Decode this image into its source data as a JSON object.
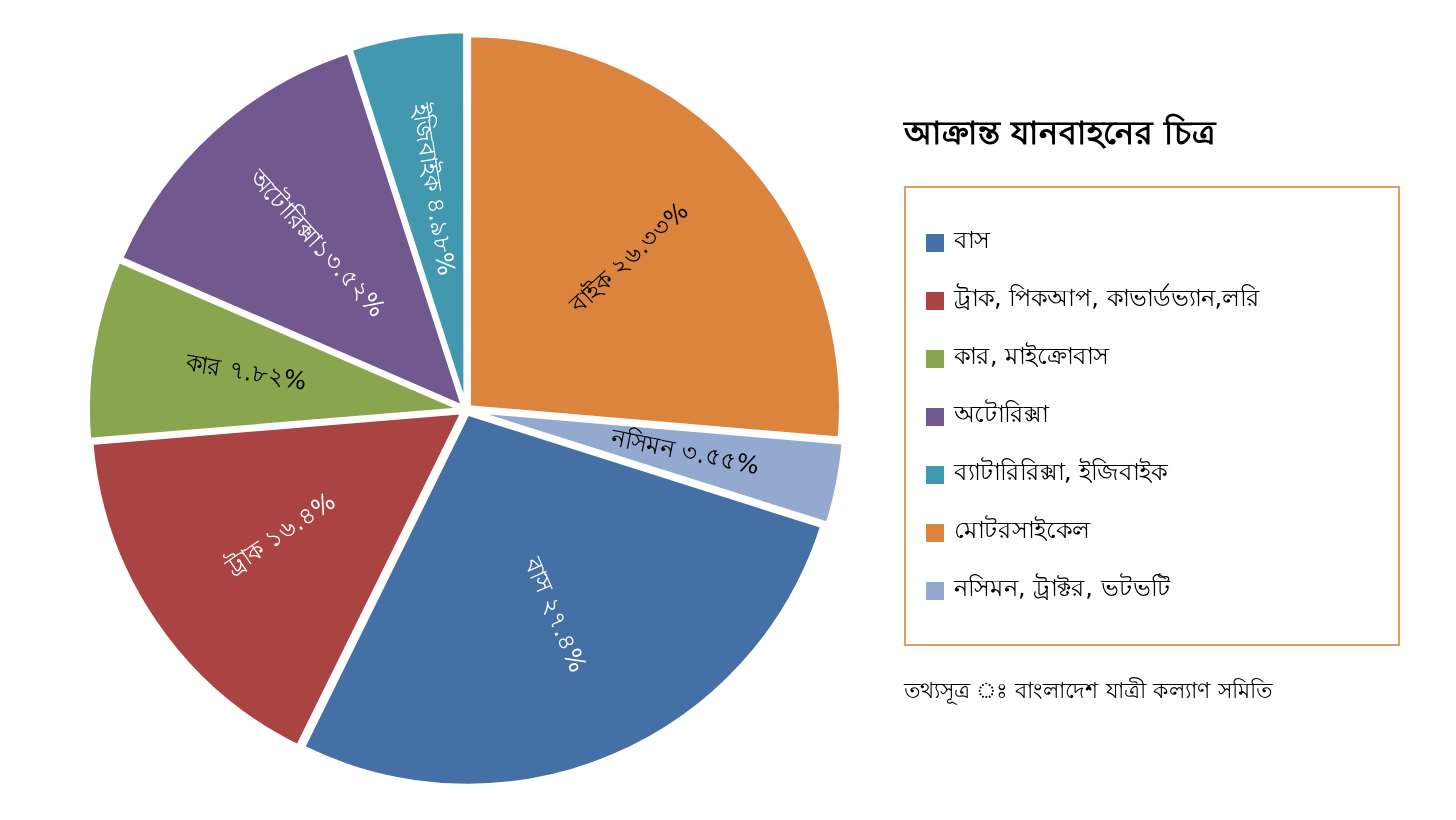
{
  "chart_data": {
    "type": "pie",
    "title": "আক্রান্ত যানবাহনের চিত্র",
    "categories": [
      "বাস",
      "ট্রাক, পিকআপ, কাভার্ডভ্যান,লরি",
      "কার, মাইক্রোবাস",
      "অটোরিক্সা",
      "ব্যাটারিরিক্সা, ইজিবাইক",
      "মোটরসাইকেল",
      "নসিমন, ট্রাক্টর, ভটভটি"
    ],
    "values": [
      27.4,
      16.4,
      7.82,
      13.52,
      4.98,
      26.33,
      3.55
    ],
    "colors": [
      "#4470a6",
      "#aa4443",
      "#89a54e",
      "#71588f",
      "#4198af",
      "#db843d",
      "#93a9cf"
    ],
    "value_labels": [
      "বাস ২৭.৪%",
      "ট্রাক ১৬.৪%",
      "কার ৭.৮২%",
      "অটোরিক্সা১৩.৫২%",
      "ইজিবাইক ৪.৯৮%",
      "বাইক ২৬.৩৩%",
      "নসিমন ৩.৫৫%"
    ],
    "legend": "right",
    "annotations": [
      "তথ্যসূত্র ঃ বাংলাদেশ যাত্রী কল্যাণ সমিতি"
    ]
  }
}
